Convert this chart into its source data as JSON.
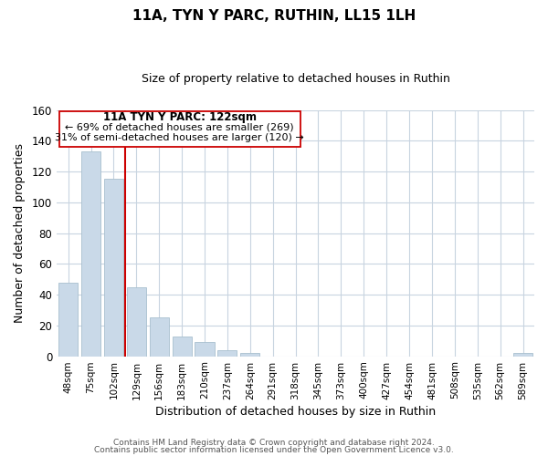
{
  "title": "11A, TYN Y PARC, RUTHIN, LL15 1LH",
  "subtitle": "Size of property relative to detached houses in Ruthin",
  "xlabel": "Distribution of detached houses by size in Ruthin",
  "ylabel": "Number of detached properties",
  "bar_labels": [
    "48sqm",
    "75sqm",
    "102sqm",
    "129sqm",
    "156sqm",
    "183sqm",
    "210sqm",
    "237sqm",
    "264sqm",
    "291sqm",
    "318sqm",
    "345sqm",
    "373sqm",
    "400sqm",
    "427sqm",
    "454sqm",
    "481sqm",
    "508sqm",
    "535sqm",
    "562sqm",
    "589sqm"
  ],
  "bar_values": [
    48,
    133,
    115,
    45,
    25,
    13,
    9,
    4,
    2,
    0,
    0,
    0,
    0,
    0,
    0,
    0,
    0,
    0,
    0,
    0,
    2
  ],
  "bar_color": "#c9d9e8",
  "bar_edge_color": "#a8bfcf",
  "ylim": [
    0,
    160
  ],
  "yticks": [
    0,
    20,
    40,
    60,
    80,
    100,
    120,
    140,
    160
  ],
  "marker_label": "11A TYN Y PARC: 122sqm",
  "annotation_line1": "← 69% of detached houses are smaller (269)",
  "annotation_line2": "31% of semi-detached houses are larger (120) →",
  "marker_color": "#cc0000",
  "footer_line1": "Contains HM Land Registry data © Crown copyright and database right 2024.",
  "footer_line2": "Contains public sector information licensed under the Open Government Licence v3.0.",
  "background_color": "#ffffff",
  "grid_color": "#c8d4e0"
}
